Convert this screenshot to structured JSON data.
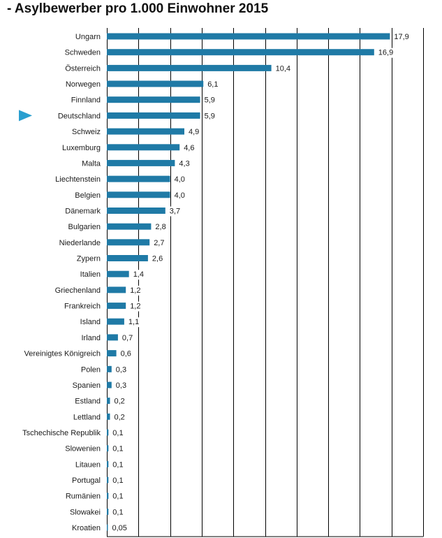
{
  "chart_data": {
    "type": "bar",
    "orientation": "horizontal",
    "title": "- Asylbewerber pro 1.000 Einwohner 2015",
    "categories": [
      "Ungarn",
      "Schweden",
      "Österreich",
      "Norwegen",
      "Finnland",
      "Deutschland",
      "Schweiz",
      "Luxemburg",
      "Malta",
      "Liechtenstein",
      "Belgien",
      "Dänemark",
      "Bulgarien",
      "Niederlande",
      "Zypern",
      "Italien",
      "Griechenland",
      "Frankreich",
      "Island",
      "Irland",
      "Vereinigtes Königreich",
      "Polen",
      "Spanien",
      "Estland",
      "Lettland",
      "Tschechische Republik",
      "Slowenien",
      "Litauen",
      "Portugal",
      "Rumänien",
      "Slowakei",
      "Kroatien"
    ],
    "values": [
      17.9,
      16.9,
      10.4,
      6.1,
      5.9,
      5.9,
      4.9,
      4.6,
      4.3,
      4.0,
      4.0,
      3.7,
      2.8,
      2.7,
      2.6,
      1.4,
      1.2,
      1.2,
      1.1,
      0.7,
      0.6,
      0.3,
      0.3,
      0.2,
      0.2,
      0.1,
      0.1,
      0.1,
      0.1,
      0.1,
      0.1,
      0.05
    ],
    "value_labels": [
      "17,9",
      "16,9",
      "10,4",
      "6,1",
      "5,9",
      "5,9",
      "4,9",
      "4,6",
      "4,3",
      "4,0",
      "4,0",
      "3,7",
      "2,8",
      "2,7",
      "2,6",
      "1,4",
      "1,2",
      "1,2",
      "1,1",
      "0,7",
      "0,6",
      "0,3",
      "0,3",
      "0,2",
      "0,2",
      "0,1",
      "0,1",
      "0,1",
      "0,1",
      "0,1",
      "0,1",
      "0,05"
    ],
    "highlighted_category": "Deutschland",
    "xlim": [
      0,
      20
    ],
    "x_gridlines": [
      0,
      2,
      4,
      6,
      8,
      10,
      12,
      14,
      16,
      18,
      20
    ],
    "grid": true,
    "bar_color": "#1f7aa6",
    "marker_color": "#2a9fd0",
    "text_color": "#1a1a1a"
  }
}
